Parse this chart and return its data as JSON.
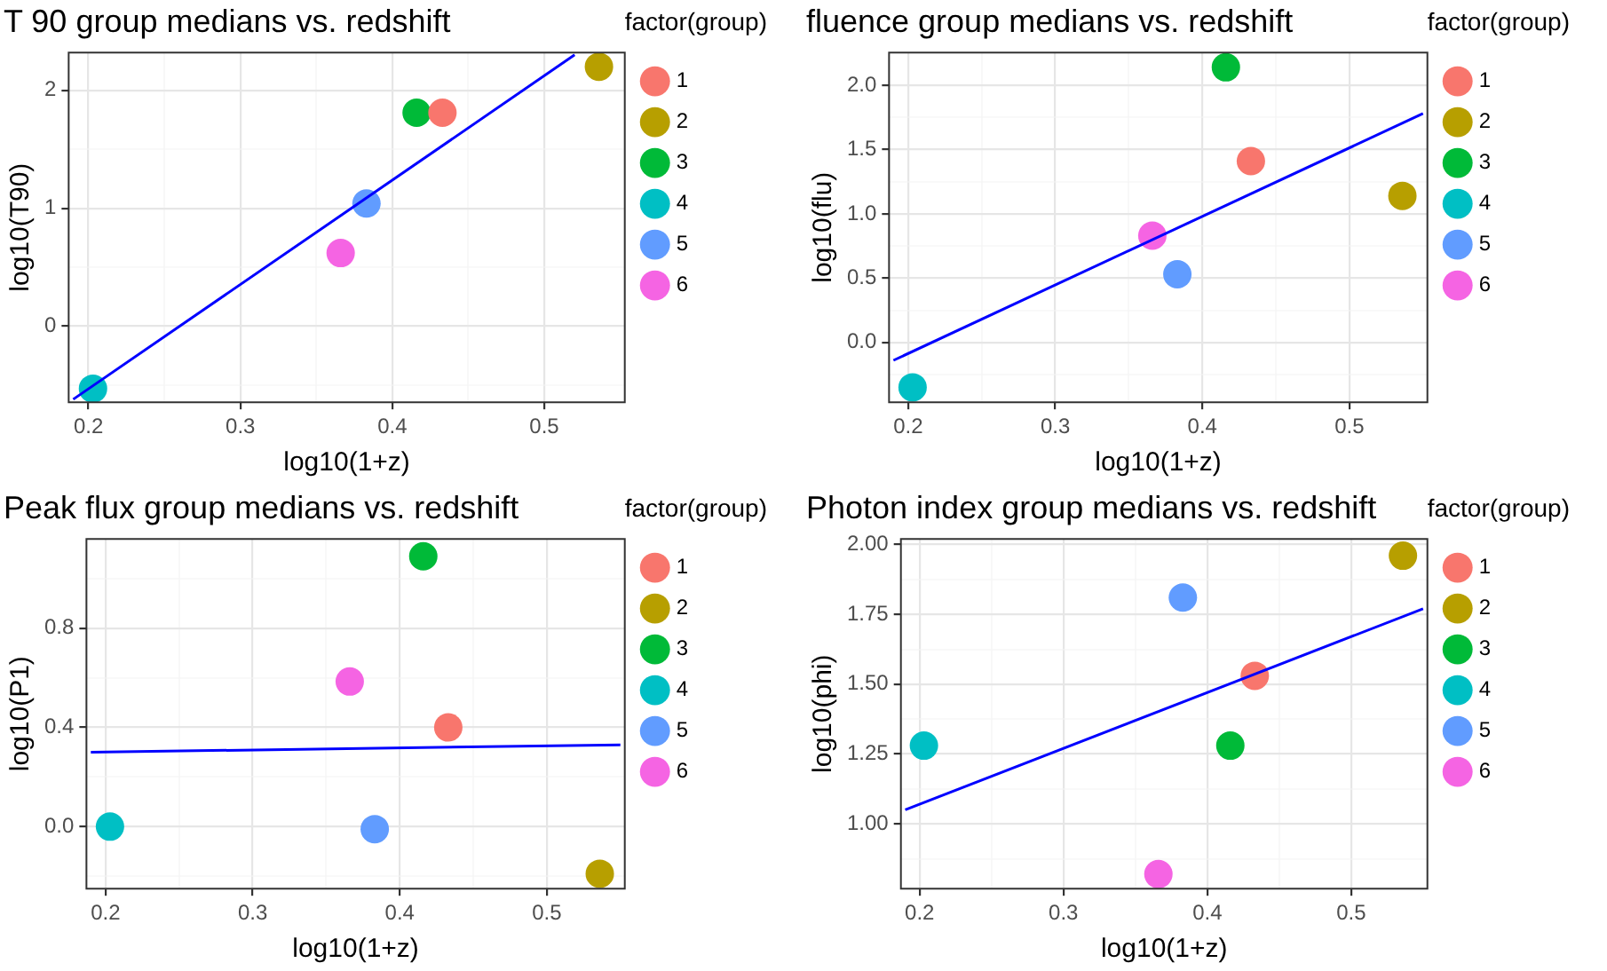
{
  "chart_data": [
    {
      "type": "scatter",
      "title": "T 90 group medians vs. redshift",
      "xlabel": "log10(1+z)",
      "ylabel": "log10(T90)",
      "legend_title": "factor(group)",
      "legend": "right",
      "grid": true,
      "marker": "circle",
      "xlim": [
        0.187,
        0.553
      ],
      "xticks": [
        0.2,
        {
          "value": 0.25,
          "label": null
        },
        0.3,
        {
          "value": 0.35,
          "label": null
        },
        0.4,
        {
          "value": 0.45,
          "label": null
        },
        0.5
      ],
      "ylim": [
        -0.645,
        2.32
      ],
      "yticks": [
        {
          "value": -0.5,
          "label": null
        },
        0,
        {
          "value": 0.5,
          "label": null
        },
        1,
        {
          "value": 1.5,
          "label": null
        },
        2
      ],
      "series": [
        {
          "name": "1",
          "color": "#f8766d",
          "x": [
            0.433
          ],
          "values": [
            1.81
          ]
        },
        {
          "name": "2",
          "color": "#b79f00",
          "x": [
            0.536
          ],
          "values": [
            2.2
          ]
        },
        {
          "name": "3",
          "color": "#00ba38",
          "x": [
            0.416
          ],
          "values": [
            1.81
          ]
        },
        {
          "name": "4",
          "color": "#00bfc4",
          "x": [
            0.203
          ],
          "values": [
            -0.53
          ]
        },
        {
          "name": "5",
          "color": "#619cff",
          "x": [
            0.383
          ],
          "values": [
            1.04
          ]
        },
        {
          "name": "6",
          "color": "#f564e3",
          "x": [
            0.366
          ],
          "values": [
            0.62
          ]
        },
        {
          "type": "line",
          "marker": "none",
          "color": "#0000ff",
          "x": [
            0.19,
            0.52
          ],
          "values": [
            -0.62,
            2.3
          ]
        }
      ]
    },
    {
      "type": "scatter",
      "title": "fluence group medians vs. redshift",
      "xlabel": "log10(1+z)",
      "ylabel": "log10(flu)",
      "legend_title": "factor(group)",
      "legend": "right",
      "grid": true,
      "marker": "circle",
      "xlim": [
        0.187,
        0.553
      ],
      "xticks": [
        0.2,
        {
          "value": 0.25,
          "label": null
        },
        0.3,
        {
          "value": 0.35,
          "label": null
        },
        0.4,
        {
          "value": 0.45,
          "label": null
        },
        0.5
      ],
      "ylim": [
        -0.466,
        2.255
      ],
      "yticks": [
        {
          "value": -0.25,
          "label": null
        },
        {
          "value": 0,
          "label": "0.0"
        },
        {
          "value": 0.25,
          "label": null
        },
        0.5,
        {
          "value": 0.75,
          "label": null
        },
        {
          "value": 1,
          "label": "1.0"
        },
        {
          "value": 1.25,
          "label": null
        },
        1.5,
        {
          "value": 1.75,
          "label": null
        },
        {
          "value": 2,
          "label": "2.0"
        }
      ],
      "series": [
        {
          "name": "1",
          "color": "#f8766d",
          "x": [
            0.433
          ],
          "values": [
            1.41
          ]
        },
        {
          "name": "2",
          "color": "#b79f00",
          "x": [
            0.536
          ],
          "values": [
            1.14
          ]
        },
        {
          "name": "3",
          "color": "#00ba38",
          "x": [
            0.416
          ],
          "values": [
            2.14
          ]
        },
        {
          "name": "4",
          "color": "#00bfc4",
          "x": [
            0.203
          ],
          "values": [
            -0.35
          ]
        },
        {
          "name": "5",
          "color": "#619cff",
          "x": [
            0.383
          ],
          "values": [
            0.53
          ]
        },
        {
          "name": "6",
          "color": "#f564e3",
          "x": [
            0.366
          ],
          "values": [
            0.83
          ]
        },
        {
          "type": "line",
          "marker": "none",
          "color": "#0000ff",
          "x": [
            0.19,
            0.55
          ],
          "values": [
            -0.14,
            1.78
          ]
        }
      ]
    },
    {
      "type": "scatter",
      "title": "Peak flux group medians vs. redshift",
      "xlabel": "log10(1+z)",
      "ylabel": "log10(P1)",
      "legend_title": "factor(group)",
      "legend": "right",
      "grid": true,
      "marker": "circle",
      "xlim": [
        0.187,
        0.553
      ],
      "xticks": [
        0.2,
        {
          "value": 0.25,
          "label": null
        },
        0.3,
        {
          "value": 0.35,
          "label": null
        },
        0.4,
        {
          "value": 0.45,
          "label": null
        },
        0.5
      ],
      "ylim": [
        -0.25,
        1.16
      ],
      "yticks": [
        {
          "value": -0.2,
          "label": null
        },
        {
          "value": 0,
          "label": "0.0"
        },
        {
          "value": 0.2,
          "label": null
        },
        0.4,
        {
          "value": 0.6,
          "label": null
        },
        0.8,
        {
          "value": 1,
          "label": null
        }
      ],
      "series": [
        {
          "name": "1",
          "color": "#f8766d",
          "x": [
            0.433
          ],
          "values": [
            0.4
          ]
        },
        {
          "name": "2",
          "color": "#b79f00",
          "x": [
            0.536
          ],
          "values": [
            -0.19
          ]
        },
        {
          "name": "3",
          "color": "#00ba38",
          "x": [
            0.416
          ],
          "values": [
            1.09
          ]
        },
        {
          "name": "4",
          "color": "#00bfc4",
          "x": [
            0.203
          ],
          "values": [
            0
          ]
        },
        {
          "name": "5",
          "color": "#619cff",
          "x": [
            0.383
          ],
          "values": [
            -0.01
          ]
        },
        {
          "name": "6",
          "color": "#f564e3",
          "x": [
            0.366
          ],
          "values": [
            0.585
          ]
        },
        {
          "type": "line",
          "marker": "none",
          "color": "#0000ff",
          "x": [
            0.19,
            0.55
          ],
          "values": [
            0.3,
            0.33
          ]
        }
      ]
    },
    {
      "type": "scatter",
      "title": "Photon index group medians vs. redshift",
      "xlabel": "log10(1+z)",
      "ylabel": "log10(phi)",
      "legend_title": "factor(group)",
      "legend": "right",
      "grid": true,
      "marker": "circle",
      "xlim": [
        0.187,
        0.553
      ],
      "xticks": [
        0.2,
        {
          "value": 0.25,
          "label": null
        },
        0.3,
        {
          "value": 0.35,
          "label": null
        },
        0.4,
        {
          "value": 0.45,
          "label": null
        },
        0.5
      ],
      "ylim": [
        0.768,
        2.02
      ],
      "yticks": [
        {
          "value": 0.875,
          "label": null
        },
        {
          "value": 1,
          "label": "1.00"
        },
        {
          "value": 1.125,
          "label": null
        },
        1.25,
        {
          "value": 1.375,
          "label": null
        },
        {
          "value": 1.5,
          "label": "1.50"
        },
        {
          "value": 1.625,
          "label": null
        },
        1.75,
        {
          "value": 1.875,
          "label": null
        },
        {
          "value": 2,
          "label": "2.00"
        }
      ],
      "series": [
        {
          "name": "1",
          "color": "#f8766d",
          "x": [
            0.433
          ],
          "values": [
            1.53
          ]
        },
        {
          "name": "2",
          "color": "#b79f00",
          "x": [
            0.536
          ],
          "values": [
            1.96
          ]
        },
        {
          "name": "3",
          "color": "#00ba38",
          "x": [
            0.416
          ],
          "values": [
            1.28
          ]
        },
        {
          "name": "4",
          "color": "#00bfc4",
          "x": [
            0.203
          ],
          "values": [
            1.28
          ]
        },
        {
          "name": "5",
          "color": "#619cff",
          "x": [
            0.383
          ],
          "values": [
            1.81
          ]
        },
        {
          "name": "6",
          "color": "#f564e3",
          "x": [
            0.366
          ],
          "values": [
            0.82
          ]
        },
        {
          "type": "line",
          "marker": "none",
          "color": "#0000ff",
          "x": [
            0.19,
            0.55
          ],
          "values": [
            1.05,
            1.77
          ]
        }
      ]
    }
  ]
}
